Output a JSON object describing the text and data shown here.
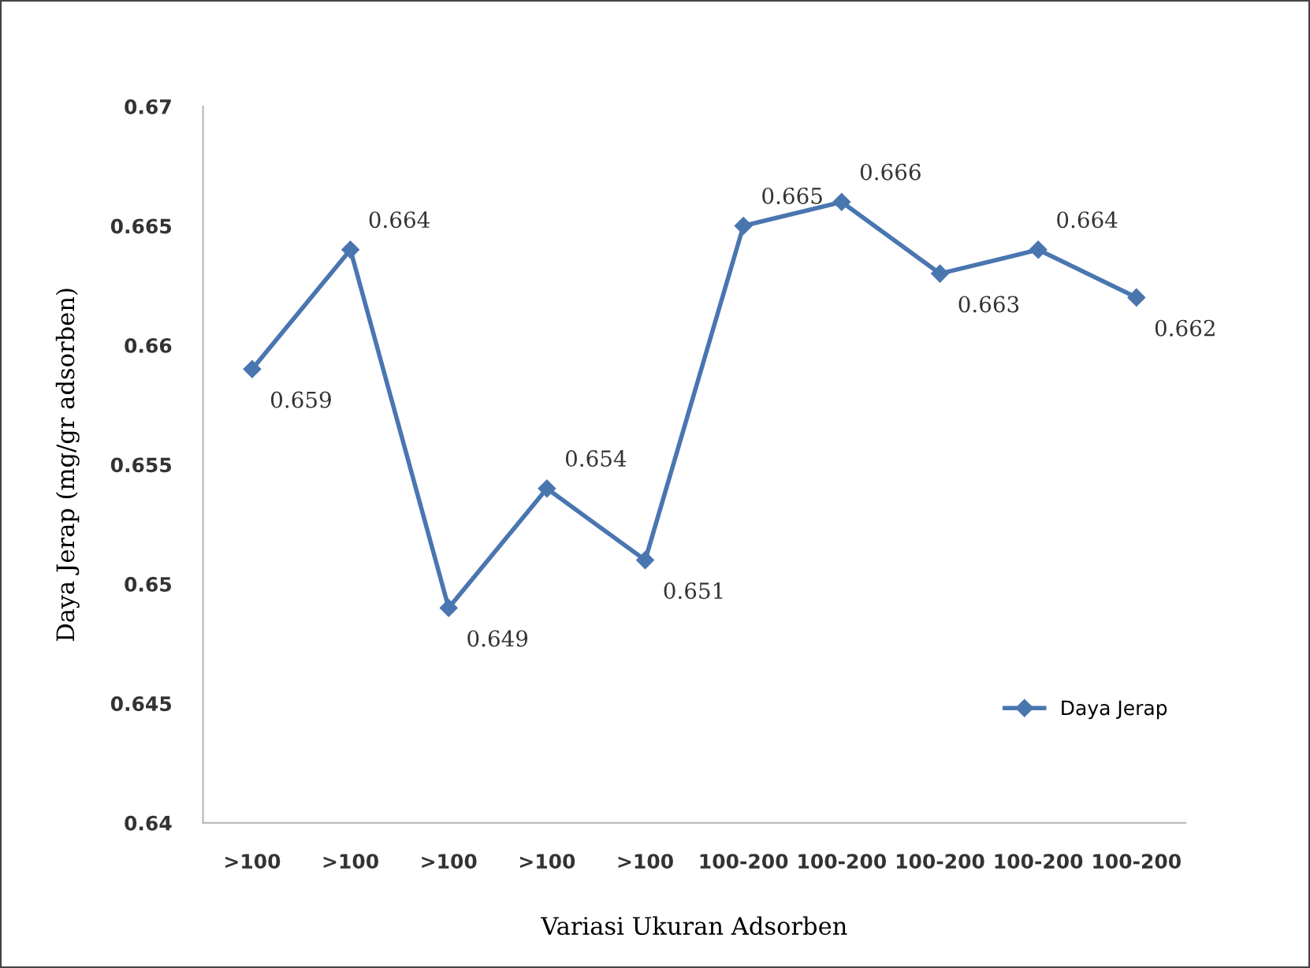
{
  "chart_data": {
    "type": "line",
    "xlabel": "Variasi Ukuran Adsorben",
    "ylabel": "Daya Jerap (mg/gr adsorben)",
    "categories": [
      ">100",
      ">100",
      ">100",
      ">100",
      ">100",
      "100-200",
      "100-200",
      "100-200",
      "100-200",
      "100-200"
    ],
    "series": [
      {
        "name": "Daya Jerap",
        "color": "#4a76b0",
        "values": [
          0.659,
          0.664,
          0.649,
          0.654,
          0.651,
          0.665,
          0.666,
          0.663,
          0.664,
          0.662
        ]
      }
    ],
    "ylim": [
      0.64,
      0.67
    ],
    "yticks": [
      0.64,
      0.645,
      0.65,
      0.655,
      0.66,
      0.665,
      0.67
    ],
    "data_labels": true,
    "legend": "lower right",
    "grid": false,
    "marker": "diamond",
    "line_style": "solid"
  }
}
